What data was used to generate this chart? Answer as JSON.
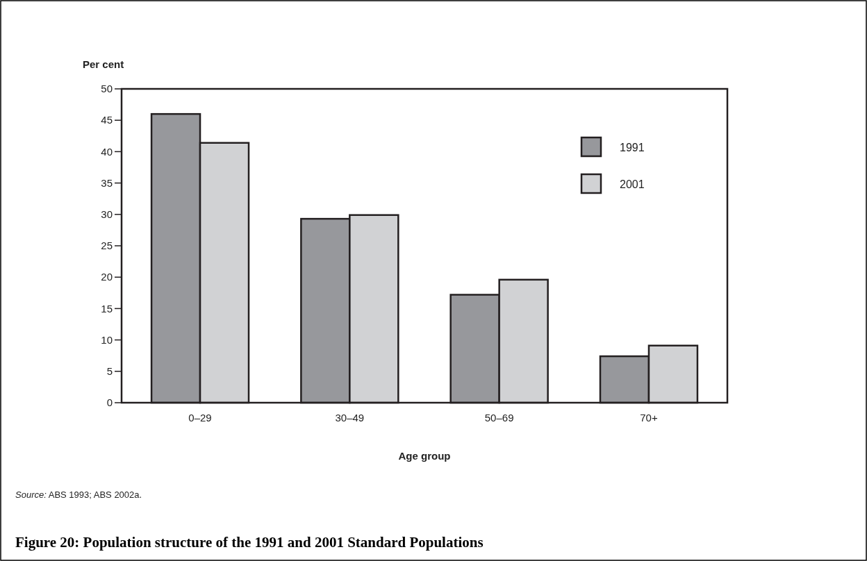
{
  "chart_data": {
    "type": "bar",
    "title": "Figure 20: Population structure of the 1991 and 2001 Standard Populations",
    "ylabel": "Per cent",
    "xlabel": "Age group",
    "annotations": [
      "Source: ABS 1993; ABS 2002a."
    ],
    "categories": [
      "0–29",
      "30–49",
      "50–69",
      "70+"
    ],
    "series": [
      {
        "name": "1991",
        "color": "#97989c",
        "values": [
          46.0,
          29.3,
          17.2,
          7.4
        ]
      },
      {
        "name": "2001",
        "color": "#d1d2d4",
        "values": [
          41.4,
          29.9,
          19.6,
          9.1
        ]
      }
    ],
    "ylim": [
      0,
      50
    ],
    "yticks": [
      0,
      5,
      10,
      15,
      20,
      25,
      30,
      35,
      40,
      45,
      50
    ],
    "grid": false,
    "legend": "top right"
  }
}
